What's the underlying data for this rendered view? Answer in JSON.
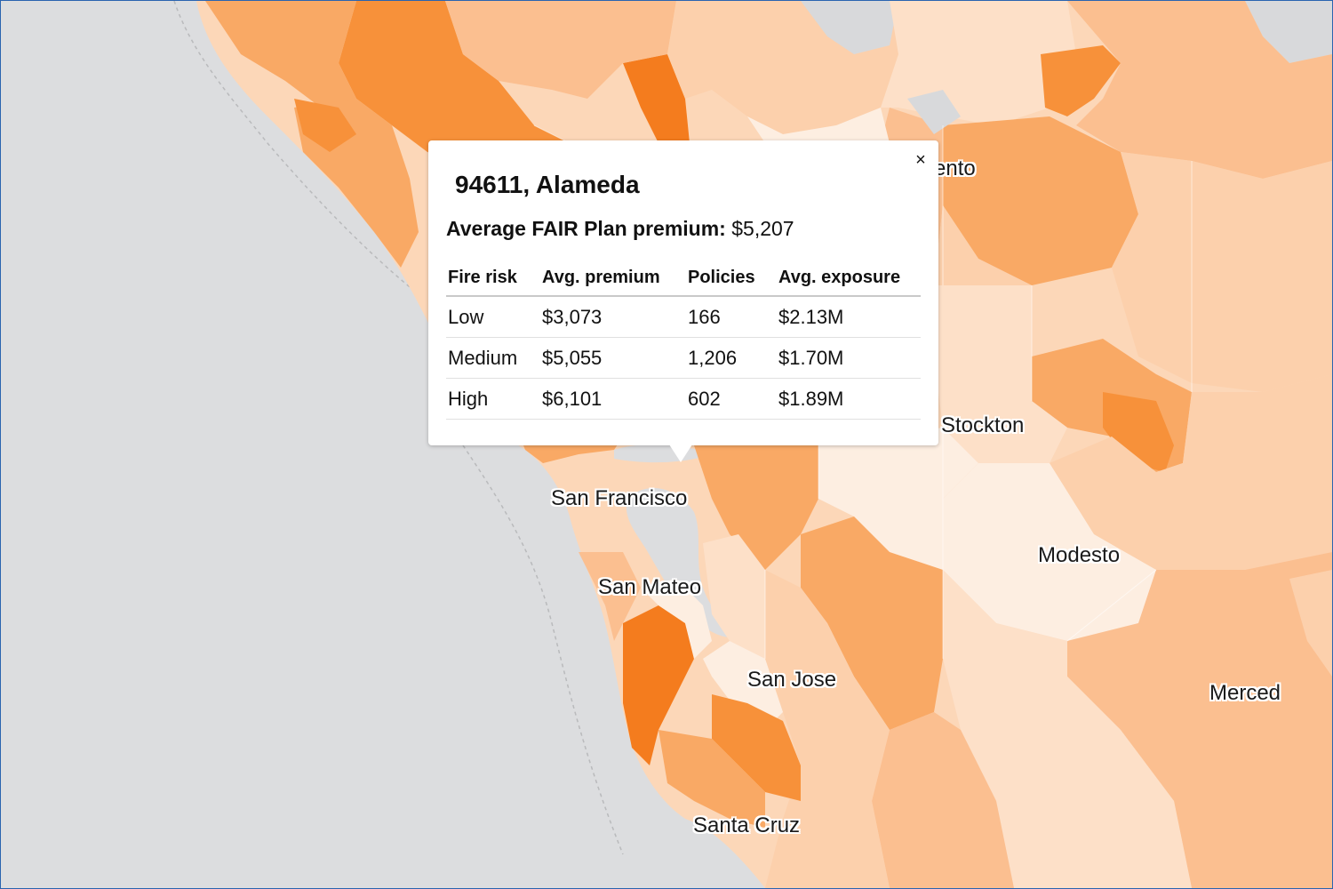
{
  "map": {
    "colors": {
      "water": "#dcdddf",
      "no_data": "#d8d9db",
      "ramp": [
        "#fdeee1",
        "#fde0c8",
        "#fcd0ac",
        "#fbbf90",
        "#f9a965",
        "#f7913a",
        "#f47c1e"
      ]
    },
    "cities": {
      "sacramento": "ento",
      "stockton": "Stockton",
      "san_francisco": "San Francisco",
      "modesto": "Modesto",
      "san_mateo": "San Mateo",
      "san_jose": "San Jose",
      "merced": "Merced",
      "santa_cruz": "Santa Cruz"
    }
  },
  "popup": {
    "close_label": "×",
    "title": "94611, Alameda",
    "summary_label": "Average FAIR Plan premium:",
    "summary_value": "$5,207",
    "table": {
      "headers": [
        "Fire risk",
        "Avg. premium",
        "Policies",
        "Avg. exposure"
      ],
      "rows": [
        [
          "Low",
          "$3,073",
          "166",
          "$2.13M"
        ],
        [
          "Medium",
          "$5,055",
          "1,206",
          "$1.70M"
        ],
        [
          "High",
          "$6,101",
          "602",
          "$1.89M"
        ]
      ]
    }
  }
}
